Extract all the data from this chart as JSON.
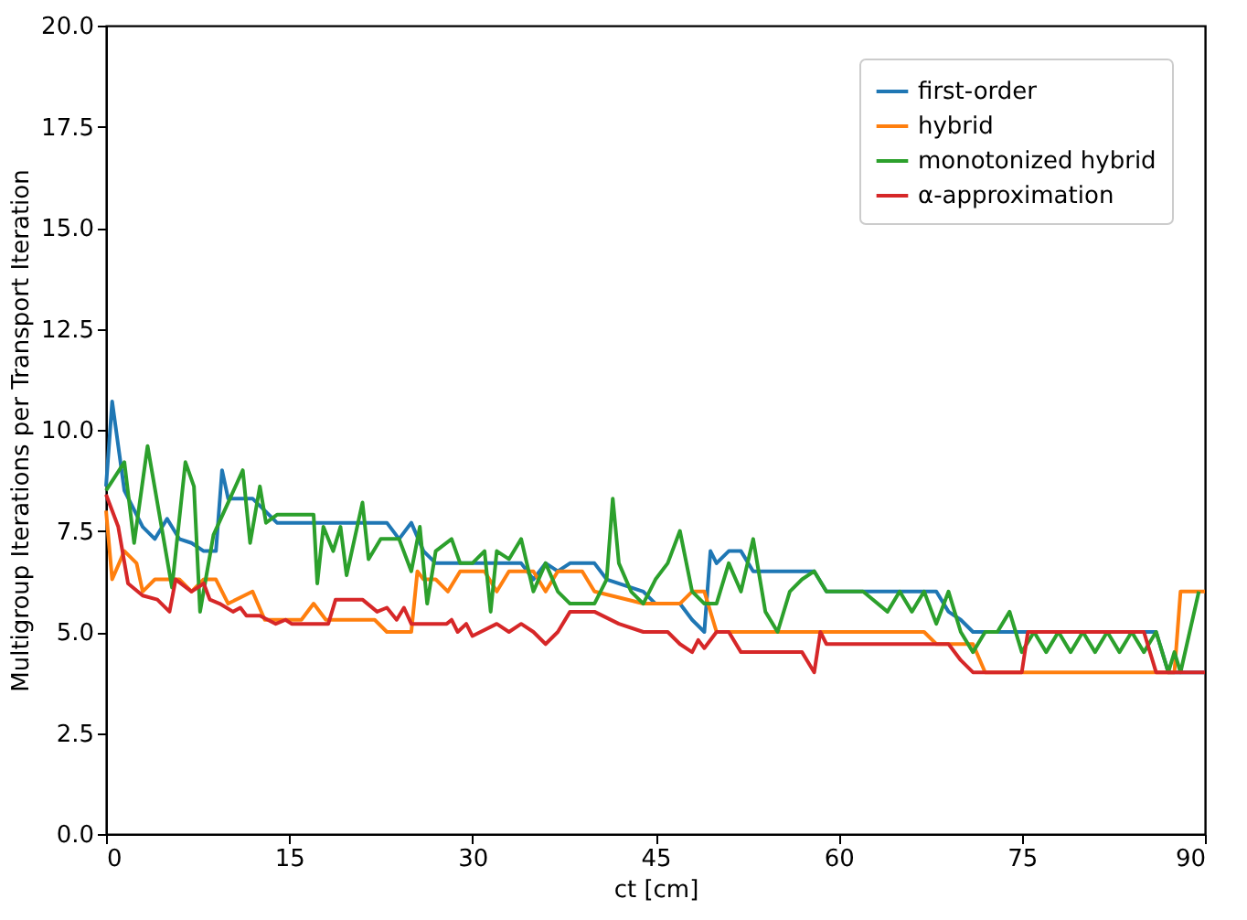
{
  "chart_data": {
    "type": "line",
    "xlabel": "ct [cm]",
    "ylabel": "Multigroup Iterations per Transport Iteration",
    "xlim": [
      0,
      90
    ],
    "xticks": [
      0,
      15,
      30,
      45,
      60,
      75,
      90
    ],
    "ylim": [
      0,
      20
    ],
    "yticks": [
      {
        "value": 0,
        "label": "0.0"
      },
      {
        "value": 2.5,
        "label": "2.5"
      },
      {
        "value": 5,
        "label": "5.0"
      },
      {
        "value": 7.5,
        "label": "7.5"
      },
      {
        "value": 10,
        "label": "10.0"
      },
      {
        "value": 12.5,
        "label": "12.5"
      },
      {
        "value": 15,
        "label": "15.0"
      },
      {
        "value": 17.5,
        "label": "17.5"
      },
      {
        "value": 20,
        "label": "20.0"
      }
    ],
    "grid": false,
    "legend": "top right",
    "line_style": "solid",
    "series": [
      {
        "name": "first-order",
        "color": "#1f77b4",
        "x": [
          0,
          0.5,
          1.5,
          3,
          4,
          5,
          6,
          7,
          8,
          9,
          9.5,
          10,
          12,
          13,
          14,
          17,
          20,
          23,
          24,
          25,
          26,
          27,
          30,
          33,
          34,
          35,
          36,
          37,
          38,
          40,
          41,
          44,
          45,
          47,
          48,
          49,
          49.5,
          50,
          51,
          52,
          53,
          58,
          59,
          67,
          68,
          69,
          70,
          71,
          86,
          87,
          90
        ],
        "values": [
          8.6,
          10.7,
          8.5,
          7.6,
          7.3,
          7.8,
          7.3,
          7.2,
          7.0,
          7.0,
          9.0,
          8.3,
          8.3,
          8.0,
          7.7,
          7.7,
          7.7,
          7.7,
          7.3,
          7.7,
          7.0,
          6.7,
          6.7,
          6.7,
          6.7,
          6.3,
          6.7,
          6.5,
          6.7,
          6.7,
          6.3,
          6.0,
          5.7,
          5.7,
          5.3,
          5.0,
          7.0,
          6.7,
          7.0,
          7.0,
          6.5,
          6.5,
          6.0,
          6.0,
          6.0,
          5.5,
          5.3,
          5.0,
          5.0,
          4.0,
          4.0
        ]
      },
      {
        "name": "hybrid",
        "color": "#ff7f0e",
        "x": [
          0,
          0.5,
          1.5,
          2.5,
          3,
          4,
          6,
          7,
          8,
          9,
          10,
          12,
          13,
          16,
          17,
          18,
          22,
          23,
          25,
          25.5,
          26,
          27,
          28,
          29,
          31,
          32,
          33,
          35,
          36,
          37,
          39,
          40,
          44,
          47,
          48,
          49,
          50,
          67,
          68,
          71,
          72,
          86,
          87.5,
          88,
          90
        ],
        "values": [
          8.0,
          6.3,
          7.0,
          6.7,
          6.0,
          6.3,
          6.3,
          6.0,
          6.3,
          6.3,
          5.7,
          6.0,
          5.3,
          5.3,
          5.7,
          5.3,
          5.3,
          5.0,
          5.0,
          6.5,
          6.3,
          6.3,
          6.0,
          6.5,
          6.5,
          6.0,
          6.5,
          6.5,
          6.0,
          6.5,
          6.5,
          6.0,
          5.7,
          5.7,
          6.0,
          6.0,
          5.0,
          5.0,
          4.7,
          4.7,
          4.0,
          4.0,
          4.0,
          6.0,
          6.0
        ]
      },
      {
        "name": "monotonized hybrid",
        "color": "#2ca02c",
        "x": [
          0,
          1.5,
          2.3,
          3.4,
          5.4,
          6.5,
          7.2,
          7.7,
          8.8,
          10,
          11.2,
          11.8,
          12.6,
          13.1,
          14,
          16,
          17,
          17.3,
          17.8,
          18.6,
          19.2,
          19.7,
          21,
          21.5,
          22.5,
          24,
          25,
          25.7,
          26.3,
          27,
          28.3,
          29,
          30,
          31,
          31.5,
          32,
          33,
          34,
          35,
          36,
          37,
          38,
          40,
          41,
          41.5,
          42,
          43,
          44,
          45,
          46,
          47,
          48,
          49,
          50,
          51,
          52,
          53,
          54,
          55,
          56,
          57,
          58,
          59,
          62,
          64,
          65,
          66,
          67,
          68,
          69,
          70,
          71,
          72,
          73,
          74,
          75,
          76,
          77,
          78,
          79,
          80,
          81,
          82,
          83,
          84,
          85,
          86,
          87,
          87.5,
          88,
          89.5
        ],
        "values": [
          8.5,
          9.2,
          7.2,
          9.6,
          6.1,
          9.2,
          8.6,
          5.5,
          7.4,
          8.2,
          9.0,
          7.2,
          8.6,
          7.7,
          7.9,
          7.9,
          7.9,
          6.2,
          7.6,
          7.0,
          7.6,
          6.4,
          8.2,
          6.8,
          7.3,
          7.3,
          6.5,
          7.6,
          5.7,
          7.0,
          7.3,
          6.7,
          6.7,
          7.0,
          5.5,
          7.0,
          6.8,
          7.3,
          6.0,
          6.7,
          6.0,
          5.7,
          5.7,
          6.3,
          8.3,
          6.7,
          6.0,
          5.7,
          6.3,
          6.7,
          7.5,
          6.0,
          5.7,
          5.7,
          6.7,
          6.0,
          7.3,
          5.5,
          5.0,
          6.0,
          6.3,
          6.5,
          6.0,
          6.0,
          5.5,
          6.0,
          5.5,
          6.0,
          5.2,
          6.0,
          5.0,
          4.5,
          5.0,
          5.0,
          5.5,
          4.5,
          5.0,
          4.5,
          5.0,
          4.5,
          5.0,
          4.5,
          5.0,
          4.5,
          5.0,
          4.5,
          5.0,
          4.0,
          4.5,
          4.0,
          6.0
        ]
      },
      {
        "name": "α-approximation",
        "color": "#d62728",
        "x": [
          0,
          1,
          1.8,
          3,
          4.2,
          5.2,
          5.7,
          7,
          8,
          8.5,
          9.3,
          10.4,
          11,
          11.5,
          12.6,
          13.9,
          14.7,
          15.2,
          18.2,
          18.8,
          21,
          22.2,
          23,
          23.8,
          24.4,
          25,
          27.9,
          28.3,
          28.8,
          29.5,
          30,
          32,
          33,
          34,
          35,
          36,
          37,
          38,
          40,
          42,
          44,
          46,
          47,
          48,
          48.5,
          49,
          50,
          51,
          52,
          57,
          58,
          58.5,
          59,
          67,
          69,
          70,
          71,
          75,
          75.5,
          85,
          86,
          90
        ],
        "values": [
          8.4,
          7.6,
          6.2,
          5.9,
          5.8,
          5.5,
          6.3,
          6.0,
          6.2,
          5.8,
          5.7,
          5.5,
          5.6,
          5.4,
          5.4,
          5.2,
          5.3,
          5.2,
          5.2,
          5.8,
          5.8,
          5.5,
          5.6,
          5.3,
          5.6,
          5.2,
          5.2,
          5.3,
          5.0,
          5.2,
          4.9,
          5.2,
          5.0,
          5.2,
          5.0,
          4.7,
          5.0,
          5.5,
          5.5,
          5.2,
          5.0,
          5.0,
          4.7,
          4.5,
          4.8,
          4.6,
          5.0,
          5.0,
          4.5,
          4.5,
          4.0,
          5.0,
          4.7,
          4.7,
          4.7,
          4.3,
          4.0,
          4.0,
          5.0,
          5.0,
          4.0,
          4.0
        ]
      }
    ]
  }
}
